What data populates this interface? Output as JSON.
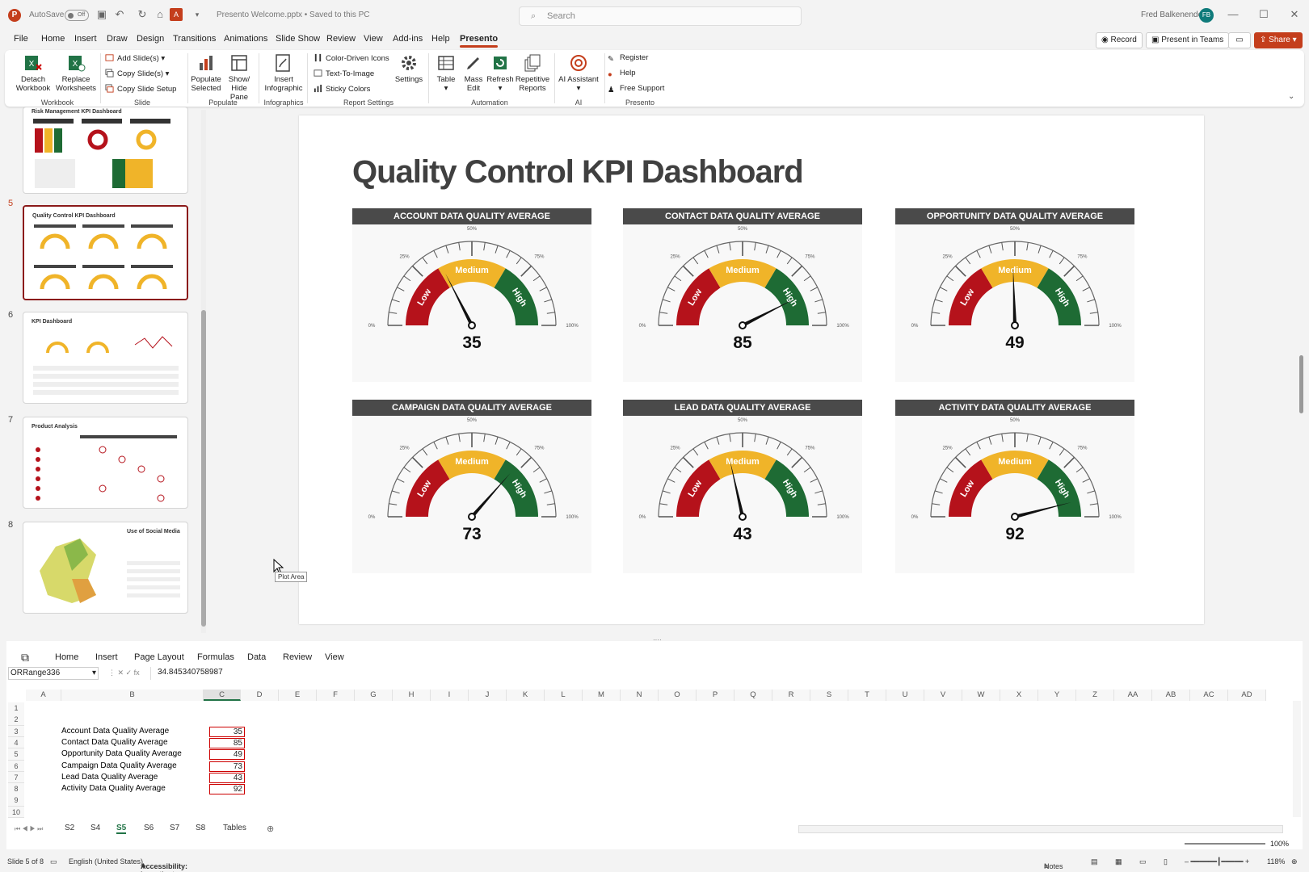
{
  "titlebar": {
    "autosave_label": "AutoSave",
    "autosave_state": "Off",
    "doc_title": "Presento Welcome.pptx • Saved to this PC",
    "search_placeholder": "Search",
    "user_name": "Fred Balkenende",
    "user_initials": "FB"
  },
  "menu": {
    "tabs": [
      "File",
      "Home",
      "Insert",
      "Draw",
      "Design",
      "Transitions",
      "Animations",
      "Slide Show",
      "Review",
      "View",
      "Add-ins",
      "Help",
      "Presento"
    ],
    "active": "Presento",
    "record_label": "Record",
    "teams_label": "Present in Teams",
    "share_label": "Share"
  },
  "ribbon": {
    "detach": "Detach Workbook",
    "replace": "Replace Worksheets",
    "workbook_group": "Workbook",
    "add_slides": "Add Slide(s)",
    "copy_slides": "Copy Slide(s)",
    "copy_setup": "Copy Slide Setup",
    "slide_group": "Slide",
    "populate_selected": "Populate Selected",
    "show_hide": "Show/ Hide Pane",
    "populate_group": "Populate",
    "insert_infographic": "Insert Infographic",
    "infographics_group": "Infographics",
    "color_icons": "Color-Driven Icons",
    "text_to_image": "Text-To-Image",
    "sticky_colors": "Sticky Colors",
    "settings": "Settings",
    "report_settings_group": "Report Settings",
    "table": "Table",
    "mass_edit": "Mass Edit",
    "refresh": "Refresh",
    "repetitive_reports": "Repetitive Reports",
    "automation_group": "Automation",
    "ai_assistant": "AI Assistant",
    "ai_group": "AI",
    "register": "Register",
    "help": "Help",
    "free_support": "Free Support",
    "presento_group": "Presento"
  },
  "thumbnails": [
    {
      "num": "",
      "title": "Risk Management KPI Dashboard"
    },
    {
      "num": "5",
      "title": "Quality Control KPI Dashboard"
    },
    {
      "num": "6",
      "title": "KPI Dashboard"
    },
    {
      "num": "7",
      "title": "Product Analysis"
    },
    {
      "num": "8",
      "title": "Use of Social Media"
    }
  ],
  "tooltip": "Plot Area",
  "slide": {
    "title": "Quality Control KPI Dashboard",
    "gauges": [
      {
        "title": "ACCOUNT DATA QUALITY AVERAGE",
        "value": 35
      },
      {
        "title": "CONTACT DATA QUALITY AVERAGE",
        "value": 85
      },
      {
        "title": "OPPORTUNITY DATA QUALITY AVERAGE",
        "value": 49
      },
      {
        "title": "CAMPAIGN DATA QUALITY AVERAGE",
        "value": 73
      },
      {
        "title": "LEAD  DATA QUALITY AVERAGE",
        "value": 43
      },
      {
        "title": "ACTIVITY  DATA QUALITY AVERAGE",
        "value": 92
      }
    ],
    "gauge_labels": {
      "low": "Low",
      "medium": "Medium",
      "high": "High"
    },
    "gauge_ticks": [
      "0%",
      "25%",
      "50%",
      "75%",
      "100%"
    ],
    "colors": {
      "low": "#b5121b",
      "medium": "#f0b429",
      "high": "#1e6b34",
      "header": "#4a4a4a"
    }
  },
  "excel": {
    "tabs": [
      "Home",
      "Insert",
      "Page Layout",
      "Formulas",
      "Data",
      "Review",
      "View"
    ],
    "name_box": "ORRange336",
    "formula": "34.845340758987",
    "columns": [
      "A",
      "B",
      "C",
      "D",
      "E",
      "F",
      "G",
      "H",
      "I",
      "J",
      "K",
      "L",
      "M",
      "N",
      "O",
      "P",
      "Q",
      "R",
      "S",
      "T",
      "U",
      "V",
      "W",
      "X",
      "Y",
      "Z",
      "AA",
      "AB",
      "AC",
      "AD"
    ],
    "rows": [
      "1",
      "2",
      "3",
      "4",
      "5",
      "6",
      "7",
      "8",
      "9",
      "10"
    ],
    "labels": [
      "Account Data Quality Average",
      "Contact Data Quality Average",
      "Opportunity Data Quality Average",
      "Campaign Data Quality Average",
      "Lead  Data Quality Average",
      "Activity  Data Quality Average"
    ],
    "values": [
      "35",
      "85",
      "49",
      "73",
      "43",
      "92"
    ],
    "sheets": [
      "S2",
      "S4",
      "S5",
      "S6",
      "S7",
      "S8",
      "Tables"
    ],
    "active_sheet": "S5",
    "zoom": "100%"
  },
  "status": {
    "slide_info": "Slide 5 of 8",
    "language": "English (United States)",
    "accessibility": "Accessibility: Investigate",
    "notes": "Notes",
    "zoom": "118%"
  }
}
